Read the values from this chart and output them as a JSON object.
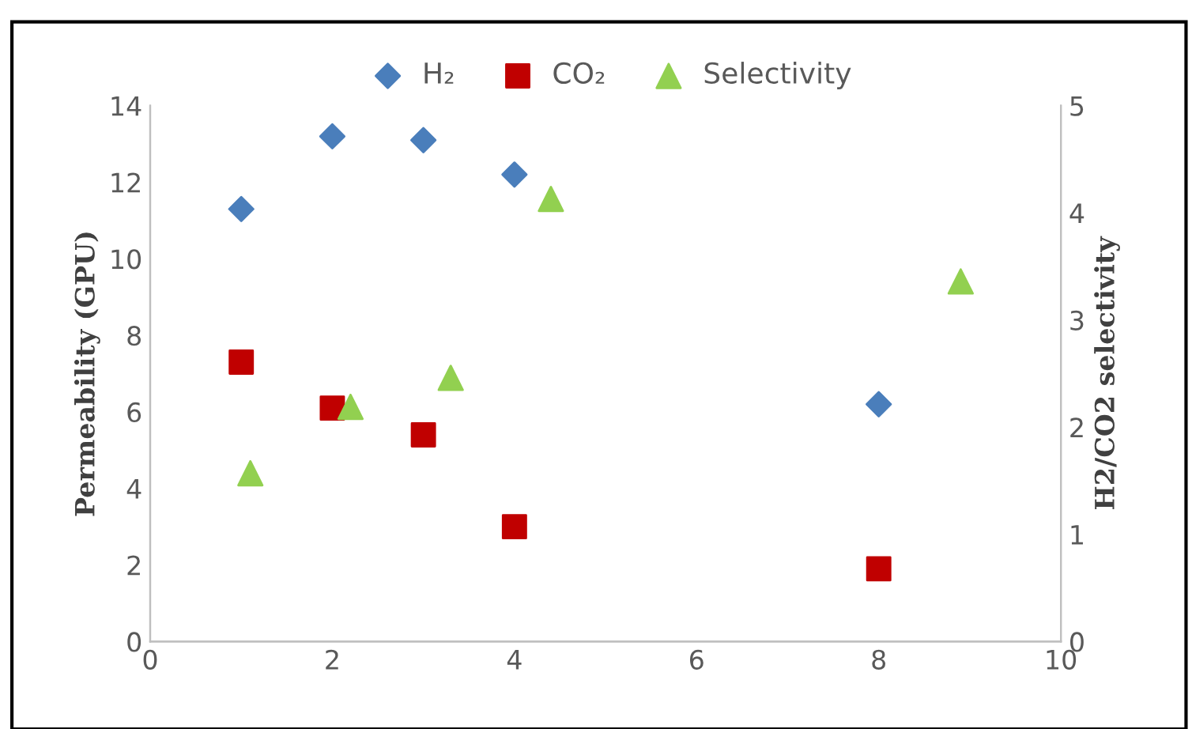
{
  "chart_data": {
    "type": "scatter",
    "ylabel": "Permeability (GPU)",
    "y2label": "H2/CO2 selectivity",
    "xlim": [
      0,
      10
    ],
    "xticks": [
      0,
      2,
      4,
      6,
      8,
      10
    ],
    "ylim": [
      0,
      14
    ],
    "yticks": [
      0,
      2,
      4,
      6,
      8,
      10,
      12,
      14
    ],
    "y2lim": [
      0,
      5
    ],
    "y2ticks": [
      0,
      1,
      2,
      3,
      4,
      5
    ],
    "grid": false,
    "legend": "top",
    "series": [
      {
        "name": "H₂",
        "color": "#4a7ebb",
        "marker": "diamond",
        "x": [
          1,
          2,
          3,
          4,
          8
        ],
        "values": [
          11.3,
          13.2,
          13.1,
          12.2,
          6.2
        ]
      },
      {
        "name": "CO₂",
        "color": "#c00000",
        "marker": "square",
        "x": [
          1,
          2,
          3,
          4,
          8
        ],
        "values": [
          7.3,
          6.1,
          5.4,
          3.0,
          1.9
        ]
      },
      {
        "name": "Selectivity",
        "color": "#92d050",
        "marker": "triangle",
        "axis": "y2",
        "x": [
          1.1,
          2.2,
          3.3,
          4.4,
          8.9
        ],
        "values": [
          1.57,
          2.19,
          2.46,
          4.13,
          3.36
        ]
      }
    ]
  }
}
